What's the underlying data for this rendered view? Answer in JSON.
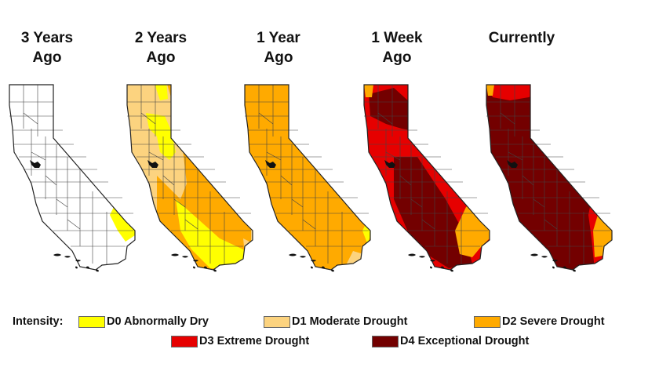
{
  "panels": [
    {
      "title": "3 Years\nAgo"
    },
    {
      "title": "2 Years\nAgo"
    },
    {
      "title": "1 Year\nAgo"
    },
    {
      "title": "1 Week\nAgo"
    },
    {
      "title": "Currently"
    }
  ],
  "legend": {
    "intensity_label": "Intensity:",
    "items": [
      {
        "label": "D0 Abnormally Dry",
        "color": "#ffff00"
      },
      {
        "label": "D1 Moderate Drought",
        "color": "#fcd37f"
      },
      {
        "label": "D2 Severe Drought",
        "color": "#ffaa00"
      },
      {
        "label": "D3 Extreme Drought",
        "color": "#e60000"
      },
      {
        "label": "D4 Exceptional Drought",
        "color": "#730000"
      }
    ]
  },
  "colors": {
    "none": "#ffffff",
    "outline": "#222222",
    "county_lines": "#444444"
  }
}
